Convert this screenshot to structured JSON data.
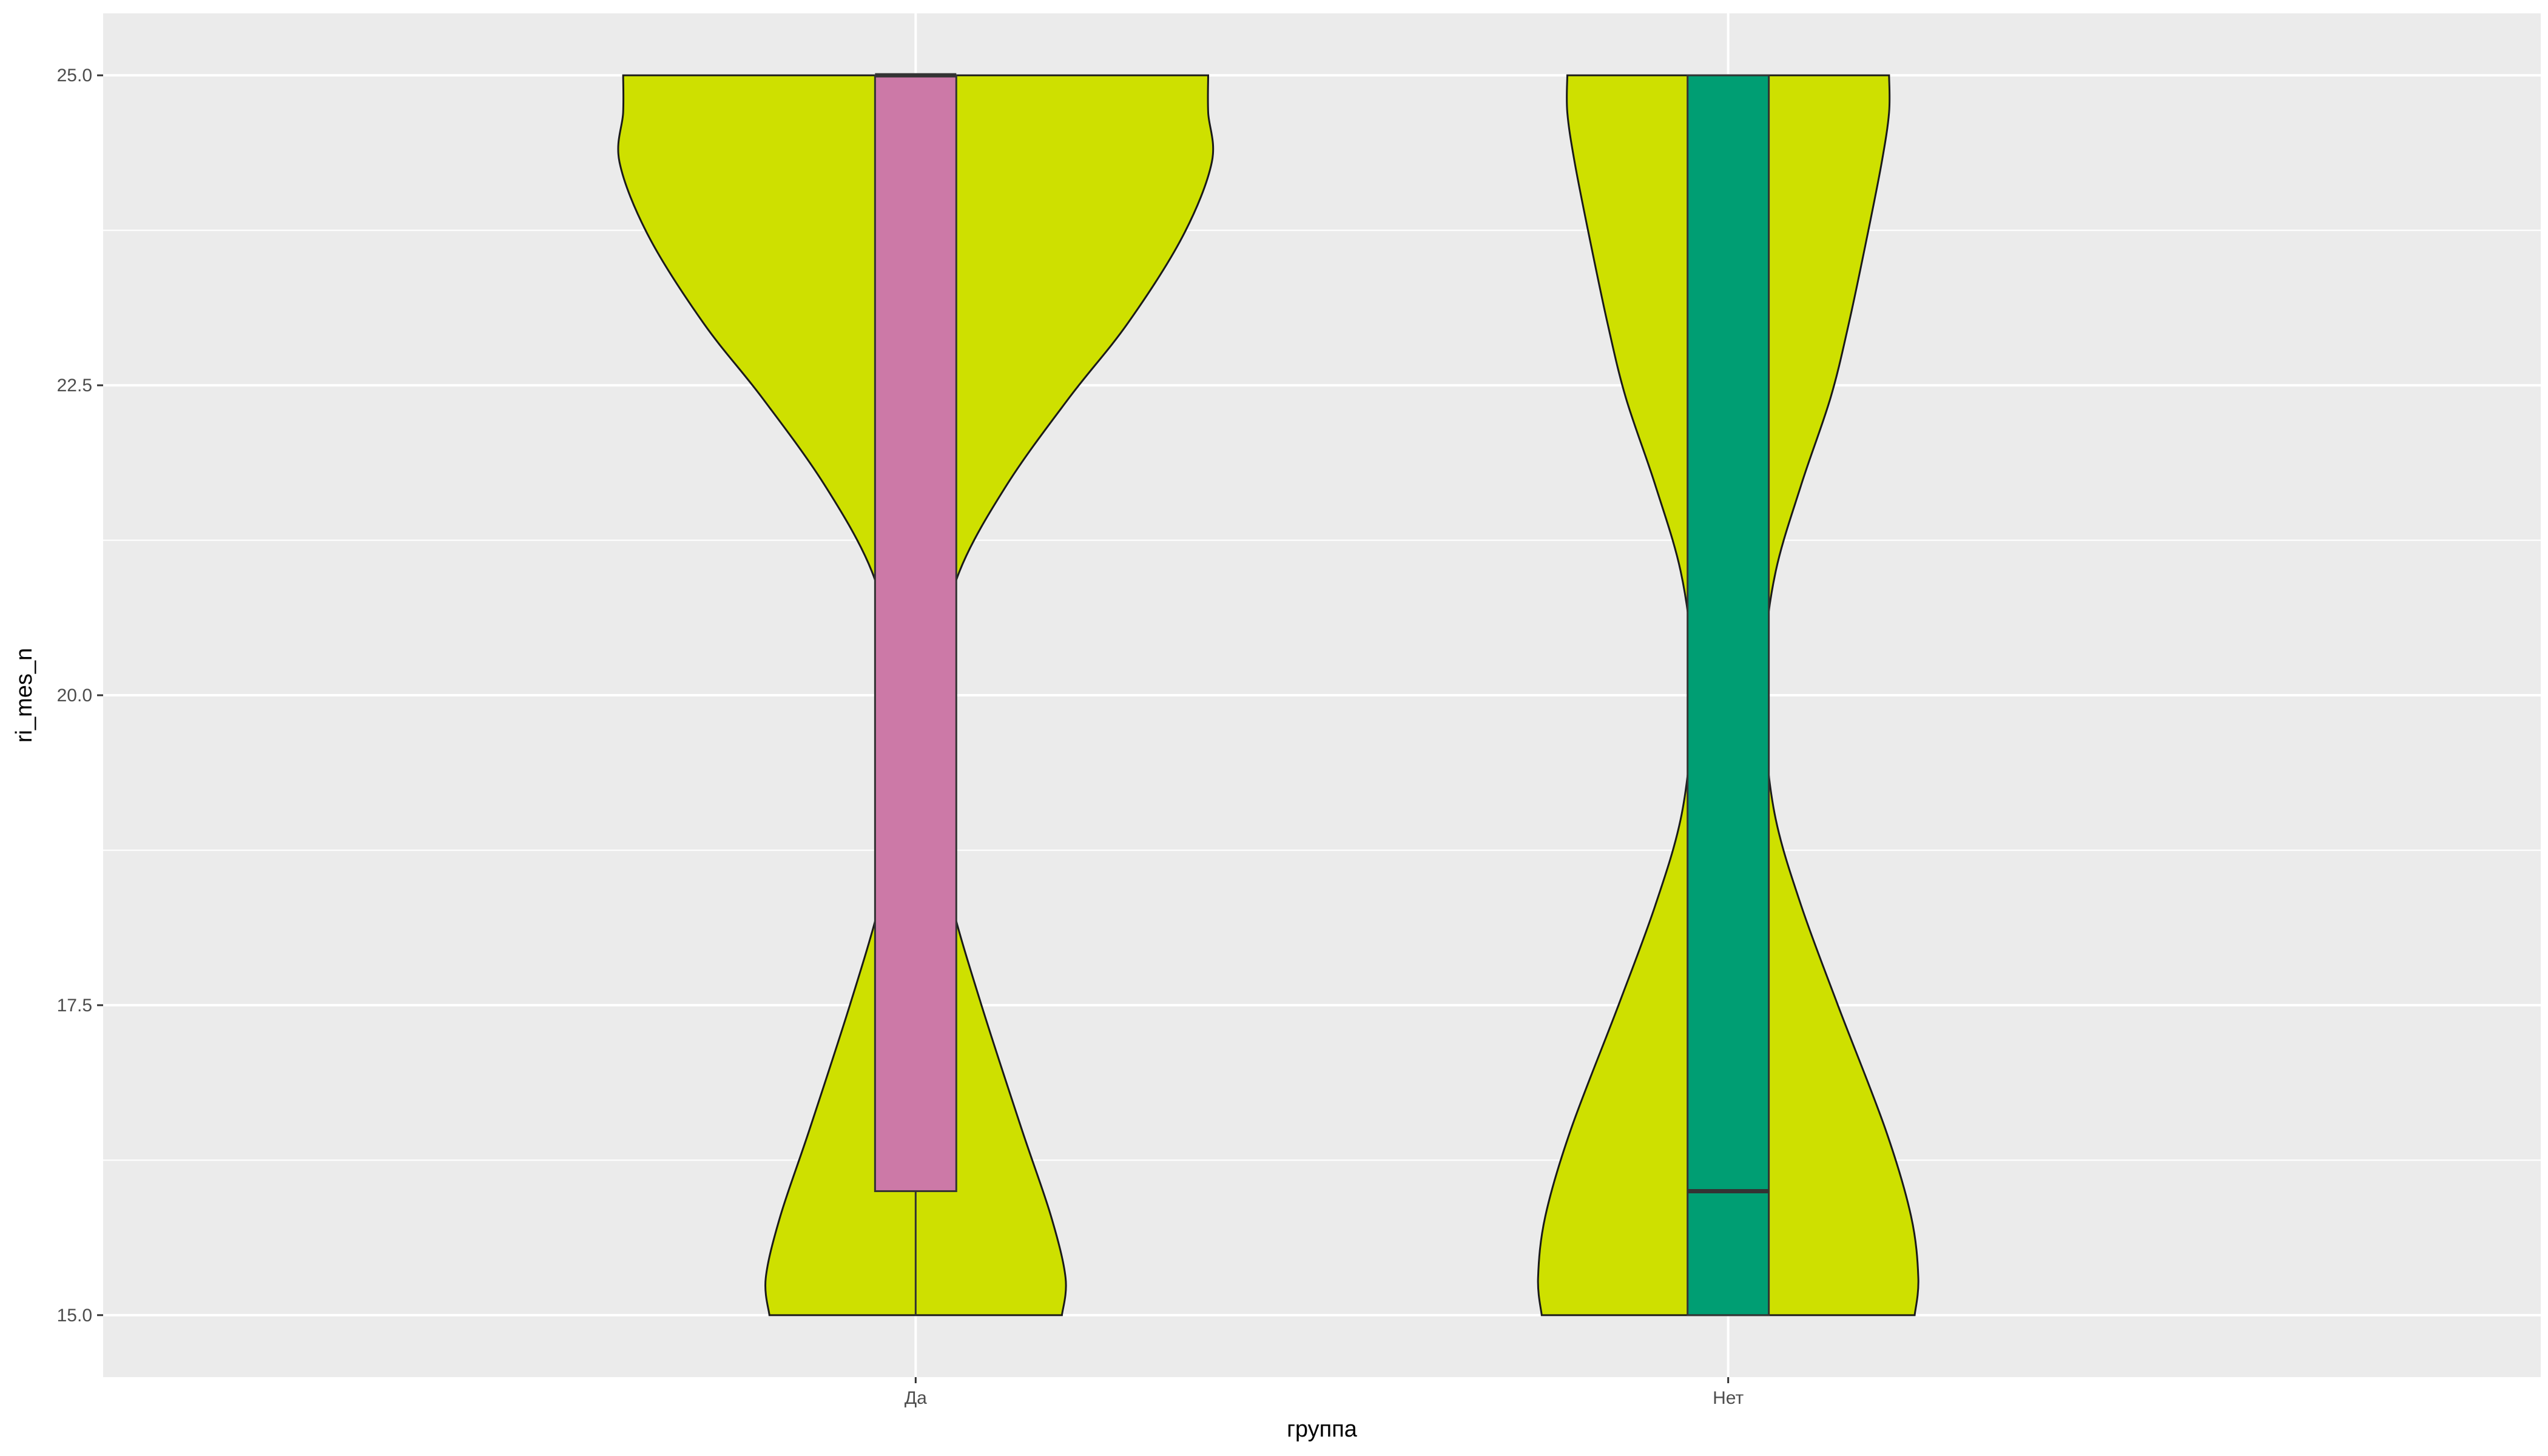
{
  "chart_data": {
    "type": "violin",
    "xlabel": "группа",
    "ylabel": "ri_mes_n",
    "categories": [
      "Да",
      "Нет"
    ],
    "ylim": [
      14.5,
      25.5
    ],
    "y_ticks": [
      15.0,
      17.5,
      20.0,
      22.5,
      25.0
    ],
    "y_tick_labels": [
      "15.0",
      "17.5",
      "20.0",
      "22.5",
      "25.0"
    ],
    "grid": true,
    "legend": "none",
    "panel_background": "#EBEBEB",
    "violin_fill": "#CEE000",
    "box_fills": [
      "#CC79A7",
      "#009E73"
    ],
    "violins": [
      {
        "category": "Да",
        "y_range": [
          15,
          25
        ],
        "density": [
          [
            15.0,
            0.4
          ],
          [
            15.3,
            0.41
          ],
          [
            15.8,
            0.37
          ],
          [
            16.5,
            0.29
          ],
          [
            17.5,
            0.18
          ],
          [
            18.3,
            0.1
          ],
          [
            19.0,
            0.05
          ],
          [
            19.7,
            0.048
          ],
          [
            20.3,
            0.06
          ],
          [
            21.0,
            0.12
          ],
          [
            21.7,
            0.25
          ],
          [
            22.4,
            0.42
          ],
          [
            23.0,
            0.58
          ],
          [
            23.7,
            0.73
          ],
          [
            24.3,
            0.81
          ],
          [
            24.7,
            0.8
          ],
          [
            25.0,
            0.8
          ]
        ]
      },
      {
        "category": "Нет",
        "y_range": [
          15,
          25
        ],
        "density": [
          [
            15.0,
            0.51
          ],
          [
            15.3,
            0.52
          ],
          [
            15.8,
            0.5
          ],
          [
            16.5,
            0.43
          ],
          [
            17.5,
            0.3
          ],
          [
            18.3,
            0.2
          ],
          [
            19.0,
            0.13
          ],
          [
            19.7,
            0.1
          ],
          [
            20.3,
            0.098
          ],
          [
            21.0,
            0.13
          ],
          [
            21.7,
            0.2
          ],
          [
            22.4,
            0.28
          ],
          [
            23.0,
            0.33
          ],
          [
            23.7,
            0.38
          ],
          [
            24.3,
            0.42
          ],
          [
            24.7,
            0.44
          ],
          [
            25.0,
            0.44
          ]
        ]
      }
    ],
    "boxes": [
      {
        "category": "Да",
        "min": 15,
        "q1": 16,
        "median": 25,
        "q3": 25,
        "max": 25
      },
      {
        "category": "Нет",
        "min": 15,
        "q1": 15,
        "median": 16,
        "q3": 25,
        "max": 25
      }
    ]
  }
}
